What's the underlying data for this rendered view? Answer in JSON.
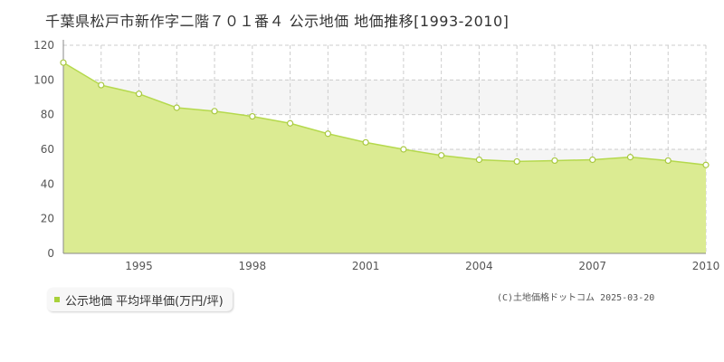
{
  "chart_data": {
    "type": "area",
    "title": "千葉県松戸市新作字二階７０１番４ 公示地価 地価推移[1993-2010]",
    "x": [
      1993,
      1994,
      1995,
      1996,
      1997,
      1998,
      1999,
      2000,
      2001,
      2002,
      2003,
      2004,
      2005,
      2006,
      2007,
      2008,
      2009,
      2010
    ],
    "series": [
      {
        "name": "公示地価 平均坪単価(万円/坪)",
        "values": [
          110,
          97,
          92,
          84,
          82,
          79,
          75,
          69,
          64,
          60,
          56.5,
          54,
          53,
          53.5,
          54,
          55.5,
          53.5,
          51
        ]
      }
    ],
    "x_ticks": [
      "1995",
      "1998",
      "2001",
      "2004",
      "2007",
      "2010"
    ],
    "y_ticks": [
      "0",
      "20",
      "40",
      "60",
      "80",
      "100",
      "120"
    ],
    "ylim": [
      0,
      120
    ],
    "xlim": [
      1993,
      2010
    ],
    "grid": true,
    "legend_position": "bottom-left",
    "colors": {
      "fill": "#dbeb92",
      "line": "#b5d94d",
      "marker_fill": "#ffffff",
      "marker_stroke": "#a8c840",
      "grid": "#cccccc",
      "axis": "#888888",
      "legend_marker": "#a8d13a"
    }
  },
  "credit": "(C)土地価格ドットコム 2025-03-20"
}
